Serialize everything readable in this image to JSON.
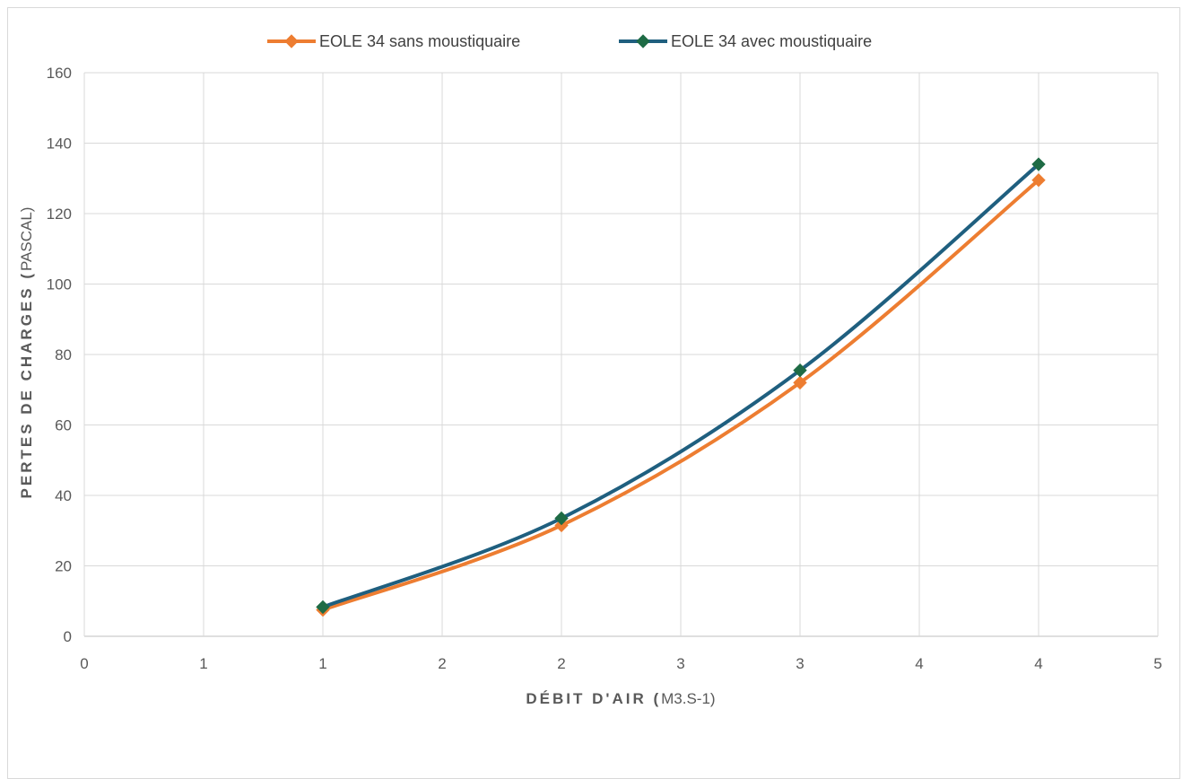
{
  "chart_data": {
    "type": "line",
    "smooth": true,
    "x_tick_labels": [
      "0",
      "1",
      "1",
      "2",
      "2",
      "3",
      "3",
      "4",
      "4",
      "5"
    ],
    "y_tick_labels": [
      "0",
      "20",
      "40",
      "60",
      "80",
      "100",
      "120",
      "140",
      "160"
    ],
    "xlim": [
      0,
      4.5
    ],
    "ylim": [
      0,
      160
    ],
    "grid": true,
    "legend_position": "top",
    "xlabel_bold": "DÉBIT D'AIR (",
    "xlabel_rest": "M3.S-1)",
    "ylabel_bold": "PERTES DE CHARGES (",
    "ylabel_rest": "PASCAL)",
    "series": [
      {
        "name": "EOLE 34 sans moustiquaire",
        "color": "#ed7d31",
        "marker": "diamond",
        "x": [
          1.0,
          2.0,
          3.0,
          4.0
        ],
        "y": [
          7.5,
          31.5,
          72,
          129.5
        ]
      },
      {
        "name": "EOLE 34 avec moustiquaire",
        "color": "#1f5f7f",
        "marker_color": "#1e6b45",
        "marker": "diamond",
        "x": [
          1.0,
          2.0,
          3.0,
          4.0
        ],
        "y": [
          8.3,
          33.5,
          75.5,
          134
        ]
      }
    ]
  }
}
